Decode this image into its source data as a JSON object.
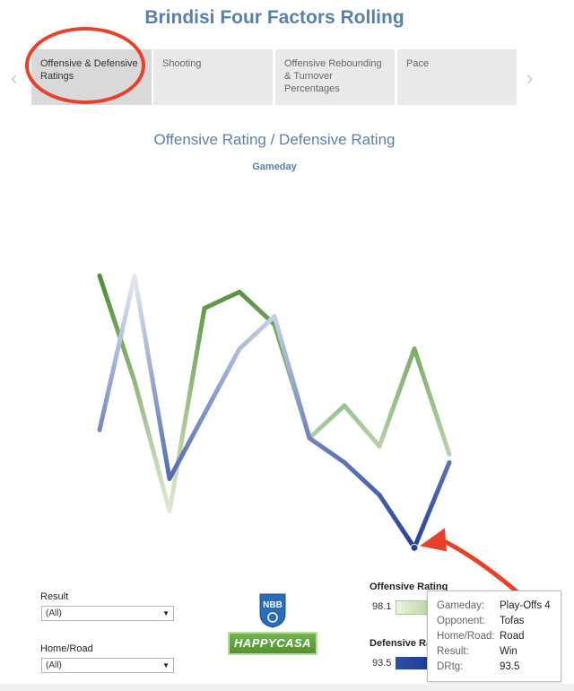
{
  "page_title": "Brindisi Four Factors Rolling",
  "tabs": [
    {
      "label": "Offensive & Defensive Ratings",
      "active": true
    },
    {
      "label": "Shooting",
      "active": false
    },
    {
      "label": "Offensive Rebounding & Turnover Percentages",
      "active": false
    },
    {
      "label": "Pace",
      "active": false
    }
  ],
  "nav": {
    "prev_icon": "chevron-left-icon",
    "next_icon": "chevron-right-icon"
  },
  "chart_data": {
    "type": "line",
    "title": "Offensive Rating / Defensive Rating",
    "xlabel": "Gameday",
    "ylabel": "",
    "grid": false,
    "x": [
      1,
      2,
      3,
      4,
      5,
      6,
      7,
      8,
      9,
      10,
      11
    ],
    "series": [
      {
        "name": "Offensive Rating",
        "values": [
          127,
          114,
          98,
          123,
          125,
          121,
          107,
          111,
          106,
          118,
          105
        ]
      },
      {
        "name": "Defensive Rating",
        "values": [
          108,
          127,
          102,
          110,
          118,
          122,
          107,
          104,
          100,
          93.5,
          104
        ]
      }
    ],
    "ylim": [
      90,
      132
    ],
    "colors": {
      "offense_high": "#4f8e36",
      "offense_low": "#dfe9d5",
      "defense_high": "#233f99",
      "defense_low": "#e3e8f1"
    }
  },
  "filters": {
    "result": {
      "label": "Result",
      "value": "(All)"
    },
    "home_road": {
      "label": "Home/Road",
      "value": "(All)"
    }
  },
  "logos": {
    "nbb": "NBB",
    "happycasa": "HAPPYCASA"
  },
  "legend": {
    "offensive": {
      "title": "Offensive Rating",
      "value": "98.1"
    },
    "defensive": {
      "title": "Defensive Rating",
      "value": "93.5"
    }
  },
  "tooltip": {
    "rows": [
      {
        "key": "Gameday:",
        "value": "Play-Offs 4"
      },
      {
        "key": "Opponent:",
        "value": "Tofas"
      },
      {
        "key": "Home/Road:",
        "value": "Road"
      },
      {
        "key": "Result:",
        "value": "Win"
      },
      {
        "key": "DRtg:",
        "value": "93.5"
      }
    ]
  },
  "annotation_color": "#e8412b"
}
